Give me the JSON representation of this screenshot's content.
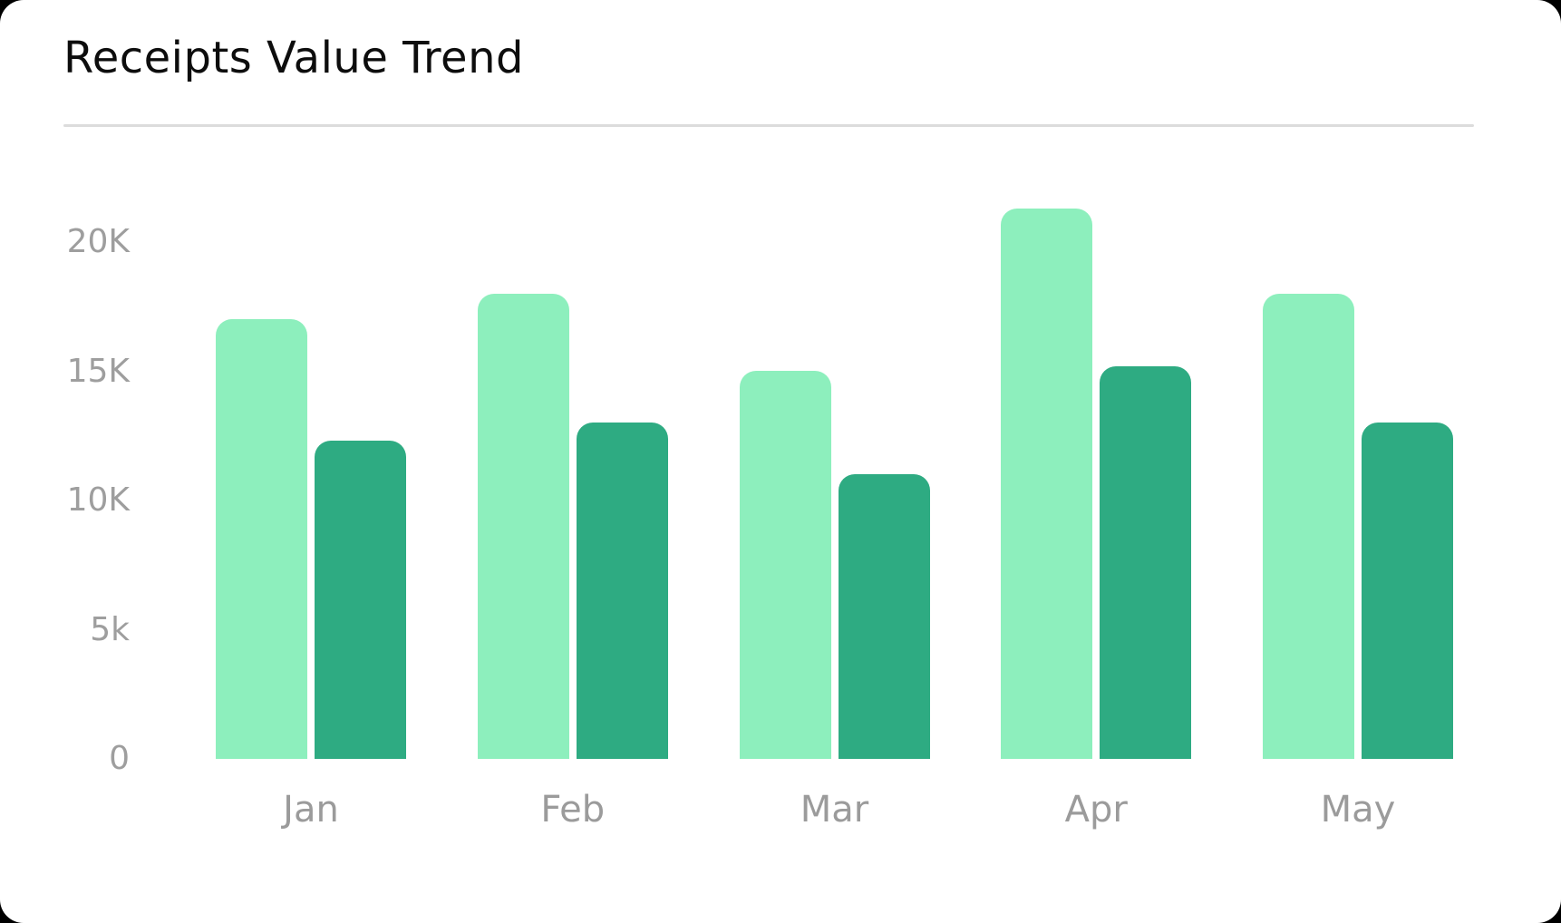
{
  "theme": {
    "page_background": "#000000",
    "card_background": "#ffffff",
    "title_color": "#0d0d0d",
    "divider_color": "#dcdcdc",
    "axis_label_color": "#9e9e9e",
    "month_label_color": "#9b9b9b"
  },
  "header": {
    "title": "Receipts Value Trend"
  },
  "chart_data": {
    "type": "bar",
    "title": "Receipts Value Trend",
    "xlabel": "",
    "ylabel": "",
    "categories": [
      "Jan",
      "Feb",
      "Mar",
      "Apr",
      "May"
    ],
    "series": [
      {
        "name": "light",
        "color": "#8DEFBD",
        "values": [
          17000,
          18000,
          15000,
          21300,
          18000
        ]
      },
      {
        "name": "dark",
        "color": "#2EAB82",
        "values": [
          12300,
          13000,
          11000,
          15200,
          13000
        ]
      }
    ],
    "y_ticks": [
      {
        "label": "0",
        "value": 0
      },
      {
        "label": "5k",
        "value": 5000
      },
      {
        "label": "10K",
        "value": 10000
      },
      {
        "label": "15K",
        "value": 15000
      },
      {
        "label": "20K",
        "value": 20000
      }
    ],
    "ylim": [
      0,
      22000
    ],
    "grid": false,
    "legend": false,
    "bar_corner_radius_px": 18
  }
}
